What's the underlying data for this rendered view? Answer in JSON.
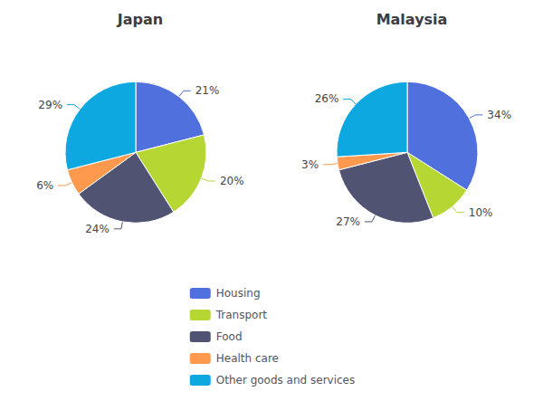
{
  "chart_data": [
    {
      "type": "pie",
      "title": "Japan",
      "categories": [
        "Housing",
        "Transport",
        "Food",
        "Health care",
        "Other goods and services"
      ],
      "values": [
        21,
        20,
        24,
        6,
        29
      ],
      "value_labels": [
        "21%",
        "20%",
        "24%",
        "6%",
        "29%"
      ],
      "data_labels": true,
      "legend": "bottom"
    },
    {
      "type": "pie",
      "title": "Malaysia",
      "categories": [
        "Housing",
        "Transport",
        "Food",
        "Health care",
        "Other goods and services"
      ],
      "values": [
        34,
        10,
        27,
        3,
        26
      ],
      "value_labels": [
        "34%",
        "10%",
        "27%",
        "3%",
        "26%"
      ],
      "data_labels": true,
      "legend": "bottom"
    }
  ]
}
